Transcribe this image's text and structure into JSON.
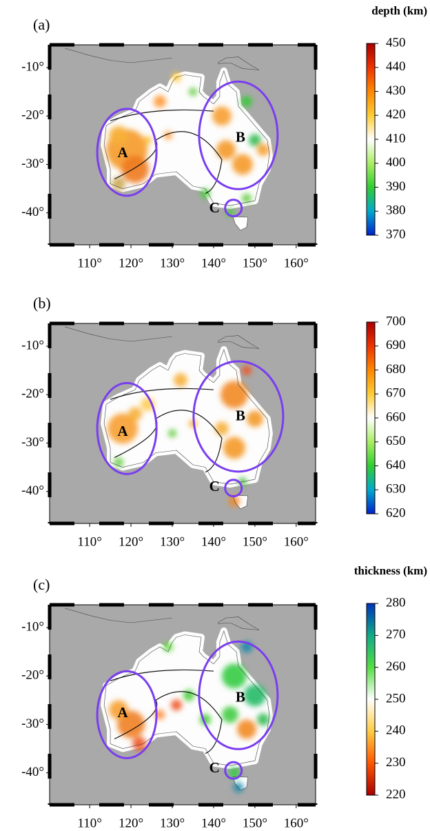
{
  "xlim": [
    100.3,
    164.7
  ],
  "ylim": [
    -46.6,
    -5.3
  ],
  "lon_ticks": [
    {
      "value": 110,
      "label": "110°"
    },
    {
      "value": 120,
      "label": "120°"
    },
    {
      "value": 130,
      "label": "130°"
    },
    {
      "value": 140,
      "label": "140°"
    },
    {
      "value": 150,
      "label": "150°"
    },
    {
      "value": 160,
      "label": "160°"
    }
  ],
  "lat_ticks": [
    {
      "value": -10,
      "label": "-10°"
    },
    {
      "value": -20,
      "label": "-20°"
    },
    {
      "value": -30,
      "label": "-30°"
    },
    {
      "value": -40,
      "label": "-40°"
    }
  ],
  "panels": [
    {
      "label": "(a)",
      "colorbar": {
        "title": "depth (km)",
        "lim": [
          370,
          450
        ],
        "ticks": [
          370,
          380,
          390,
          400,
          410,
          420,
          430,
          440,
          450
        ],
        "colors": [
          "#0022cc",
          "#00aacc",
          "#33cc33",
          "#aaee66",
          "#ffffff",
          "#ffcc33",
          "#ff8800",
          "#ee3300",
          "#aa0000"
        ]
      },
      "regions": [
        {
          "label": "A"
        },
        {
          "label": "B"
        },
        {
          "label": "C"
        }
      ]
    },
    {
      "label": "(b)",
      "colorbar": {
        "lim": [
          620,
          700
        ],
        "ticks": [
          620,
          630,
          640,
          650,
          660,
          670,
          680,
          690,
          700
        ],
        "colors": [
          "#0022cc",
          "#00aacc",
          "#33cc33",
          "#aaee66",
          "#ffffff",
          "#ffcc33",
          "#ff8800",
          "#ee3300",
          "#aa0000"
        ]
      },
      "regions": [
        {
          "label": "A"
        },
        {
          "label": "B"
        },
        {
          "label": "C"
        }
      ]
    },
    {
      "label": "(c)",
      "colorbar": {
        "title": "thickness (km)",
        "lim": [
          220,
          280
        ],
        "ticks": [
          220,
          230,
          240,
          250,
          260,
          270,
          280
        ],
        "colors": [
          "#aa0000",
          "#ff5500",
          "#ffcc44",
          "#ffffff",
          "#55dd44",
          "#11aa88",
          "#0033bb"
        ]
      },
      "regions": [
        {
          "label": "A"
        },
        {
          "label": "B"
        },
        {
          "label": "C"
        }
      ]
    }
  ]
}
